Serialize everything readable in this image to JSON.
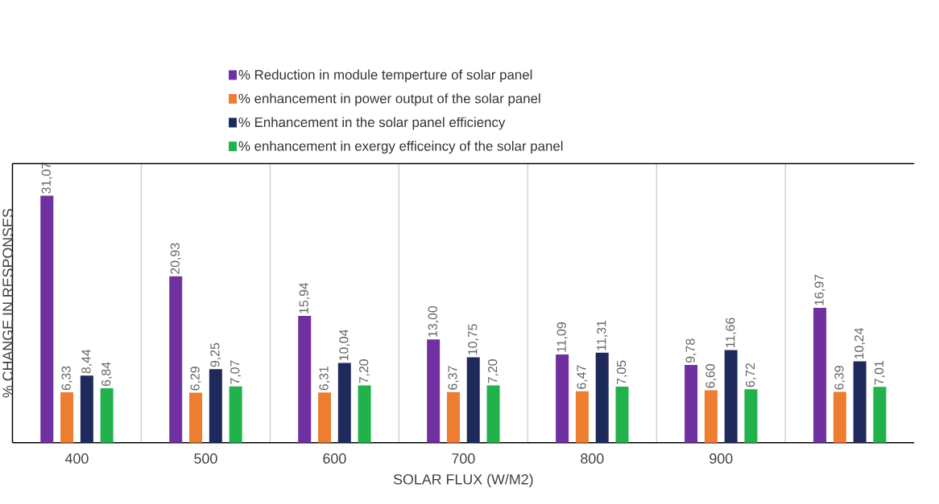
{
  "chart_data": {
    "type": "bar",
    "xlabel": "SOLAR FLUX (W/M2)",
    "ylabel": "% CHANGE IN RESPONSES",
    "categories": [
      "400",
      "500",
      "600",
      "700",
      "800",
      "900",
      null
    ],
    "legend": "top",
    "grid": "x",
    "series": [
      {
        "name": "% Reduction in module temperture of solar panel",
        "color": "#7030a0",
        "values": [
          31.07,
          20.93,
          15.94,
          13.0,
          11.09,
          9.78,
          16.97
        ],
        "value_labels": [
          "31,07",
          "20,93",
          "15,94",
          "13,00",
          "11,09",
          "9,78",
          "16,97"
        ]
      },
      {
        "name": "% enhancement in power output of the solar panel",
        "color": "#ed7d31",
        "values": [
          6.33,
          6.29,
          6.31,
          6.37,
          6.47,
          6.6,
          6.39
        ],
        "value_labels": [
          "6,33",
          "6,29",
          "6,31",
          "6,37",
          "6,47",
          "6,60",
          "6,39"
        ]
      },
      {
        "name": "% Enhancement in the solar panel efficiency",
        "color": "#1f2a5c",
        "values": [
          8.44,
          9.25,
          10.04,
          10.75,
          11.31,
          11.66,
          10.24
        ],
        "value_labels": [
          "8,44",
          "9,25",
          "10,04",
          "10,75",
          "11,31",
          "11,66",
          "10,24"
        ]
      },
      {
        "name": "% enhancement in exergy efficeincy of the solar panel",
        "color": "#21b24b",
        "values": [
          6.84,
          7.07,
          7.2,
          7.2,
          7.05,
          6.72,
          7.01
        ],
        "value_labels": [
          "6,84",
          "7,07",
          "7,20",
          "7,20",
          "7,05",
          "6,72",
          "7,01"
        ]
      }
    ]
  }
}
